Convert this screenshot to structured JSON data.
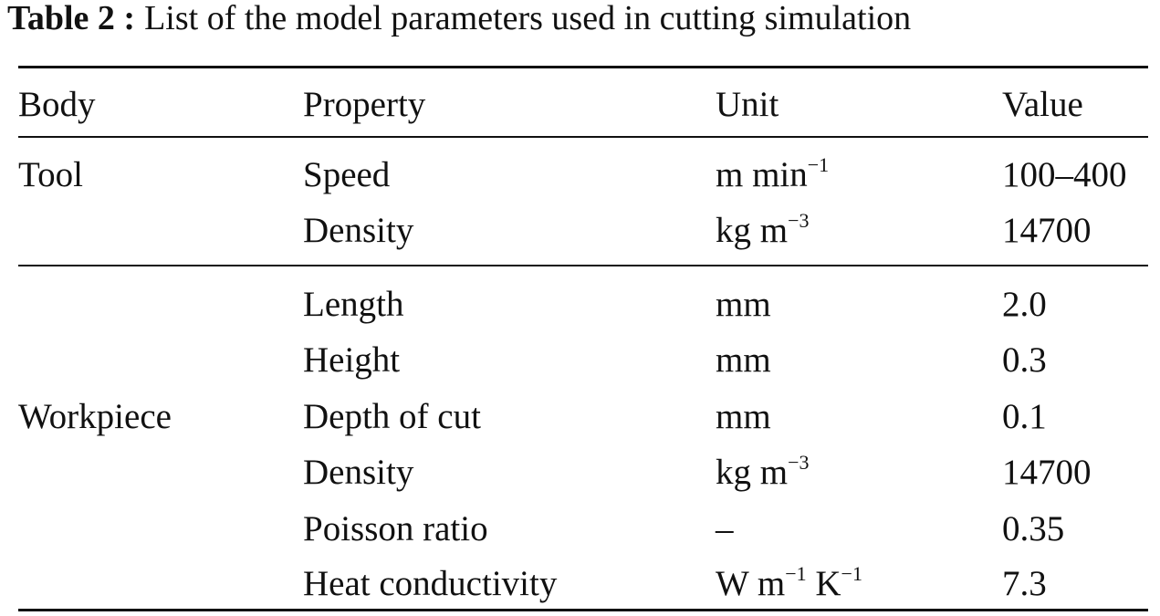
{
  "caption": {
    "label": "Table 2 :",
    "text": "List of the model parameters used in cutting simulation"
  },
  "headers": [
    "Body",
    "Property",
    "Unit",
    "Value"
  ],
  "groups": [
    {
      "body": "Tool",
      "rows": [
        {
          "property": "Speed",
          "unit": {
            "base": "m min",
            "sup": "−1"
          },
          "value": "100–400"
        },
        {
          "property": "Density",
          "unit": {
            "base": "kg m",
            "sup": "−3"
          },
          "value": "14700"
        }
      ]
    },
    {
      "body": "Workpiece",
      "rows": [
        {
          "property": "Length",
          "unit": {
            "base": "mm"
          },
          "value": "2.0"
        },
        {
          "property": "Height",
          "unit": {
            "base": "mm"
          },
          "value": "0.3"
        },
        {
          "property": "Depth of cut",
          "unit": {
            "base": "mm"
          },
          "value": "0.1"
        },
        {
          "property": "Density",
          "unit": {
            "base": "kg m",
            "sup": "−3"
          },
          "value": "14700"
        },
        {
          "property": "Poisson ratio",
          "unit": {
            "base": "–"
          },
          "value": "0.35"
        },
        {
          "property": "Heat conductivity",
          "unit": {
            "base": "W m",
            "sup": "−1",
            "base2": " K",
            "sup2": "−1"
          },
          "value": "7.3"
        }
      ]
    }
  ]
}
